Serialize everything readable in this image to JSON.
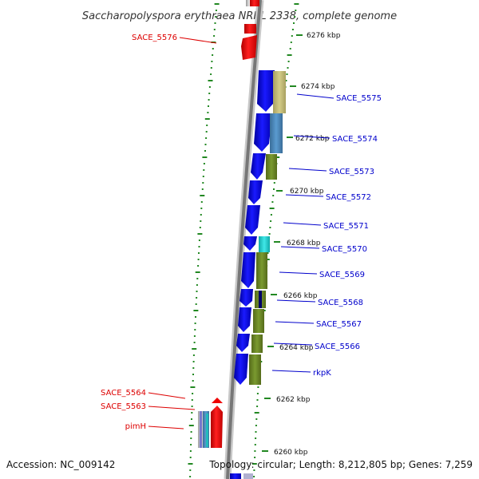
{
  "title": "Saccharopolyspora erythraea NRRL 2338, complete genome",
  "footer": {
    "accession": "Accession: NC_009142",
    "topology": "Topology: circular; Length: 8,212,805 bp; Genes: 7,259"
  },
  "kbp_labels": [
    "6276 kbp",
    "6274 kbp",
    "6272 kbp",
    "6270 kbp",
    "6268 kbp",
    "6266 kbp",
    "6264 kbp",
    "6262 kbp",
    "6260 kbp"
  ],
  "gene_labels_left": [
    "SACE_5576",
    "SACE_5564",
    "SACE_5563",
    "pimH"
  ],
  "gene_labels_right": [
    "SACE_5575",
    "SACE_5574",
    "SACE_5573",
    "SACE_5572",
    "SACE_5571",
    "SACE_5570",
    "SACE_5569",
    "SACE_5568",
    "SACE_5567",
    "SACE_5566",
    "rkpK"
  ],
  "colors": {
    "forward_gene": "#ee0000",
    "reverse_gene": "#0000ee",
    "right_label": "#0000cc",
    "left_label": "#dd0000",
    "tick": "#228822",
    "backbone": "#888888",
    "domain_olive": "#6b8e23",
    "domain_khaki": "#bdb76b",
    "domain_steel": "#4682b4",
    "domain_cyan": "#22cccc"
  }
}
